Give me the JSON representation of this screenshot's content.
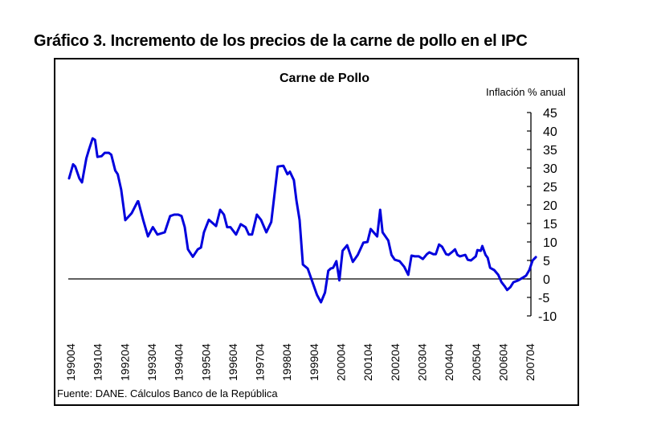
{
  "figure": {
    "title": "Gráfico 3. Incremento de los precios de la carne de pollo en el IPC",
    "source": "Fuente: DANE. Cálculos Banco de la República"
  },
  "chart_data": {
    "type": "line",
    "title": "Carne de Pollo",
    "xlabel": "",
    "ylabel": "Inflación % anual",
    "ylim": [
      -10,
      45
    ],
    "yticks": [
      45,
      40,
      35,
      30,
      25,
      20,
      15,
      10,
      5,
      0,
      -5,
      -10
    ],
    "ytick_labels": [
      "45",
      "40",
      "35",
      "30",
      "25",
      "20",
      "15",
      "10",
      "5",
      "0",
      "-5",
      "-10"
    ],
    "x_unit": "decimal year",
    "xlim": [
      1989.7,
      2007.7
    ],
    "xticks": [
      1990.25,
      1991.25,
      1992.25,
      1993.25,
      1994.25,
      1995.25,
      1996.25,
      1997.25,
      1998.25,
      1999.25,
      2000.25,
      2001.25,
      2002.25,
      2003.25,
      2004.25,
      2005.25,
      2006.25,
      2007.25
    ],
    "xtick_labels": [
      "199004",
      "199104",
      "199204",
      "199304",
      "199404",
      "199504",
      "199604",
      "199704",
      "199804",
      "199904",
      "200004",
      "200104",
      "200204",
      "200304",
      "200404",
      "200504",
      "200604",
      "200704"
    ],
    "y_axis_side": "right",
    "zero_line": true,
    "grid": false,
    "legend": "none",
    "color": "#0000dd",
    "series": [
      {
        "name": "Carne de Pollo",
        "x": [
          1990.19,
          1990.34,
          1990.42,
          1990.57,
          1990.67,
          1990.83,
          1990.92,
          1991.06,
          1991.15,
          1991.24,
          1991.39,
          1991.51,
          1991.66,
          1991.75,
          1991.9,
          1991.99,
          1992.12,
          1992.27,
          1992.51,
          1992.73,
          1992.75,
          1992.93,
          1993.11,
          1993.29,
          1993.46,
          1993.73,
          1993.93,
          1994.08,
          1994.23,
          1994.35,
          1994.47,
          1994.59,
          1994.77,
          1994.95,
          1995.07,
          1995.18,
          1995.36,
          1995.63,
          1995.78,
          1995.92,
          1996.04,
          1996.16,
          1996.37,
          1996.54,
          1996.72,
          1996.84,
          1996.96,
          1997.14,
          1997.29,
          1997.49,
          1997.67,
          1997.91,
          1998.12,
          1998.27,
          1998.36,
          1998.51,
          1998.6,
          1998.72,
          1998.84,
          1999.02,
          1999.36,
          1999.51,
          1999.66,
          1999.78,
          1999.87,
          1999.96,
          2000.08,
          2000.19,
          2000.31,
          2000.48,
          2000.69,
          2000.87,
          2001.08,
          2001.23,
          2001.35,
          2001.59,
          2001.7,
          2001.79,
          2002.0,
          2002.12,
          2002.24,
          2002.42,
          2002.59,
          2002.74,
          2002.86,
          2002.98,
          2003.13,
          2003.28,
          2003.43,
          2003.52,
          2003.67,
          2003.76,
          2003.88,
          2003.99,
          2004.14,
          2004.23,
          2004.38,
          2004.47,
          2004.56,
          2004.65,
          2004.85,
          2004.94,
          2005.06,
          2005.24,
          2005.3,
          2005.42,
          2005.48,
          2005.6,
          2005.68,
          2005.77,
          2005.92,
          2006.07,
          2006.19,
          2006.31,
          2006.4,
          2006.52,
          2006.63,
          2006.81,
          2006.99,
          2007.1,
          2007.22,
          2007.34,
          2007.46
        ],
        "values": [
          27.2,
          31.0,
          30.4,
          27.2,
          26.1,
          32.6,
          34.8,
          38.0,
          37.6,
          33.0,
          33.2,
          34.1,
          34.1,
          33.6,
          29.3,
          28.3,
          24.1,
          15.9,
          17.8,
          21.0,
          21.0,
          16.0,
          11.5,
          14.0,
          12.0,
          12.6,
          17.0,
          17.4,
          17.4,
          17.0,
          14.0,
          8.0,
          6.0,
          8.0,
          8.5,
          12.6,
          16.0,
          14.3,
          18.7,
          17.4,
          14.0,
          14.0,
          12.0,
          14.8,
          14.0,
          12.0,
          12.0,
          17.4,
          16.0,
          12.6,
          15.4,
          30.4,
          30.6,
          28.3,
          29.0,
          26.7,
          21.3,
          15.9,
          3.9,
          2.8,
          -4.3,
          -6.3,
          -3.7,
          2.2,
          2.8,
          3.0,
          4.8,
          -0.4,
          7.6,
          9.1,
          4.6,
          6.5,
          9.8,
          10.0,
          13.5,
          11.5,
          18.7,
          12.6,
          10.4,
          6.5,
          5.2,
          4.8,
          3.3,
          1.1,
          6.3,
          6.1,
          6.1,
          5.4,
          6.7,
          7.2,
          6.7,
          6.7,
          9.3,
          8.7,
          6.7,
          6.5,
          7.4,
          8.0,
          6.5,
          6.1,
          6.5,
          5.2,
          5.0,
          6.1,
          7.8,
          7.6,
          8.9,
          6.5,
          5.7,
          3.0,
          2.4,
          1.1,
          -0.9,
          -2.0,
          -3.0,
          -2.2,
          -0.9,
          -0.4,
          0.4,
          0.9,
          2.4,
          5.0,
          5.9
        ]
      }
    ]
  }
}
